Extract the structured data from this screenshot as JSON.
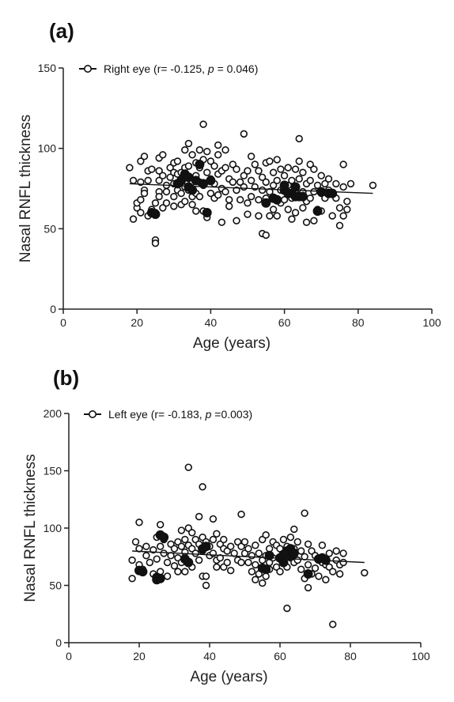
{
  "chart_data": [
    {
      "type": "scatter",
      "panel_label": "(a)",
      "legend": {
        "prefix": "Right eye (r= -0.125, ",
        "p_symbol": "p",
        "suffix": " = 0.046)",
        "placement": "top-left"
      },
      "xlabel": "Age (years)",
      "ylabel": "Nasal RNFL  thickness",
      "xlim": [
        0,
        100
      ],
      "ylim": [
        0,
        150
      ],
      "xticks": [
        0,
        20,
        40,
        60,
        80,
        100
      ],
      "yticks": [
        0,
        50,
        100,
        150
      ],
      "grid": false,
      "regression": {
        "x": [
          18,
          84
        ],
        "y": [
          78,
          72
        ]
      },
      "points": [
        [
          18,
          88
        ],
        [
          19,
          56
        ],
        [
          19,
          80
        ],
        [
          20,
          63
        ],
        [
          20,
          66
        ],
        [
          21,
          92
        ],
        [
          21,
          79
        ],
        [
          21,
          60
        ],
        [
          21,
          68
        ],
        [
          22,
          74
        ],
        [
          22,
          72
        ],
        [
          22,
          95
        ],
        [
          23,
          80
        ],
        [
          23,
          86
        ],
        [
          23,
          58
        ],
        [
          24,
          62
        ],
        [
          24,
          87
        ],
        [
          25,
          43
        ],
        [
          25,
          41
        ],
        [
          25,
          60
        ],
        [
          25,
          66
        ],
        [
          26,
          86
        ],
        [
          26,
          94
        ],
        [
          26,
          80
        ],
        [
          26,
          73
        ],
        [
          26,
          70
        ],
        [
          27,
          96
        ],
        [
          27,
          83
        ],
        [
          27,
          63
        ],
        [
          28,
          77
        ],
        [
          28,
          66
        ],
        [
          28,
          73
        ],
        [
          29,
          82
        ],
        [
          29,
          88
        ],
        [
          30,
          91
        ],
        [
          30,
          78
        ],
        [
          30,
          85
        ],
        [
          30,
          70
        ],
        [
          30,
          64
        ],
        [
          31,
          92
        ],
        [
          31,
          84
        ],
        [
          31,
          74
        ],
        [
          32,
          85
        ],
        [
          32,
          80
        ],
        [
          32,
          65
        ],
        [
          32,
          72
        ],
        [
          33,
          76
        ],
        [
          33,
          99
        ],
        [
          33,
          88
        ],
        [
          33,
          67
        ],
        [
          34,
          103
        ],
        [
          34,
          89
        ],
        [
          34,
          82
        ],
        [
          34,
          74
        ],
        [
          35,
          96
        ],
        [
          35,
          79
        ],
        [
          35,
          70
        ],
        [
          35,
          65
        ],
        [
          36,
          83
        ],
        [
          36,
          91
        ],
        [
          36,
          72
        ],
        [
          36,
          61
        ],
        [
          37,
          99
        ],
        [
          37,
          88
        ],
        [
          37,
          79
        ],
        [
          37,
          70
        ],
        [
          38,
          115
        ],
        [
          38,
          93
        ],
        [
          38,
          77
        ],
        [
          38,
          61
        ],
        [
          39,
          98
        ],
        [
          39,
          85
        ],
        [
          39,
          60
        ],
        [
          39,
          57
        ],
        [
          40,
          92
        ],
        [
          40,
          81
        ],
        [
          40,
          72
        ],
        [
          41,
          89
        ],
        [
          41,
          78
        ],
        [
          41,
          69
        ],
        [
          42,
          102
        ],
        [
          42,
          96
        ],
        [
          42,
          84
        ],
        [
          42,
          71
        ],
        [
          43,
          86
        ],
        [
          43,
          75
        ],
        [
          43,
          54
        ],
        [
          44,
          99
        ],
        [
          44,
          88
        ],
        [
          44,
          73
        ],
        [
          45,
          81
        ],
        [
          45,
          68
        ],
        [
          45,
          64
        ],
        [
          46,
          90
        ],
        [
          46,
          79
        ],
        [
          47,
          87
        ],
        [
          47,
          74
        ],
        [
          47,
          55
        ],
        [
          48,
          79
        ],
        [
          48,
          68
        ],
        [
          49,
          109
        ],
        [
          49,
          83
        ],
        [
          49,
          76
        ],
        [
          50,
          86
        ],
        [
          50,
          66
        ],
        [
          50,
          59
        ],
        [
          51,
          95
        ],
        [
          51,
          80
        ],
        [
          51,
          70
        ],
        [
          52,
          90
        ],
        [
          52,
          76
        ],
        [
          53,
          86
        ],
        [
          53,
          68
        ],
        [
          53,
          58
        ],
        [
          54,
          82
        ],
        [
          54,
          74
        ],
        [
          54,
          47
        ],
        [
          55,
          91
        ],
        [
          55,
          79
        ],
        [
          55,
          69
        ],
        [
          55,
          46
        ],
        [
          56,
          92
        ],
        [
          56,
          73
        ],
        [
          56,
          58
        ],
        [
          57,
          85
        ],
        [
          57,
          77
        ],
        [
          57,
          62
        ],
        [
          58,
          93
        ],
        [
          58,
          80
        ],
        [
          58,
          58
        ],
        [
          59,
          87
        ],
        [
          59,
          74
        ],
        [
          59,
          66
        ],
        [
          60,
          83
        ],
        [
          60,
          68
        ],
        [
          61,
          88
        ],
        [
          61,
          77
        ],
        [
          61,
          62
        ],
        [
          62,
          80
        ],
        [
          62,
          69
        ],
        [
          62,
          56
        ],
        [
          63,
          87
        ],
        [
          63,
          74
        ],
        [
          63,
          60
        ],
        [
          64,
          106
        ],
        [
          64,
          92
        ],
        [
          64,
          81
        ],
        [
          65,
          85
        ],
        [
          65,
          73
        ],
        [
          65,
          63
        ],
        [
          66,
          78
        ],
        [
          66,
          67
        ],
        [
          66,
          54
        ],
        [
          67,
          90
        ],
        [
          67,
          80
        ],
        [
          67,
          69
        ],
        [
          68,
          87
        ],
        [
          68,
          73
        ],
        [
          68,
          55
        ],
        [
          69,
          77
        ],
        [
          69,
          62
        ],
        [
          70,
          83
        ],
        [
          70,
          72
        ],
        [
          70,
          61
        ],
        [
          71,
          78
        ],
        [
          71,
          69
        ],
        [
          72,
          81
        ],
        [
          72,
          74
        ],
        [
          73,
          72
        ],
        [
          73,
          58
        ],
        [
          74,
          78
        ],
        [
          74,
          69
        ],
        [
          75,
          63
        ],
        [
          75,
          52
        ],
        [
          76,
          90
        ],
        [
          76,
          76
        ],
        [
          76,
          58
        ],
        [
          77,
          67
        ],
        [
          77,
          62
        ],
        [
          78,
          78
        ],
        [
          84,
          77
        ]
      ],
      "filled_points": [
        [
          24,
          60
        ],
        [
          25,
          59
        ],
        [
          31,
          78
        ],
        [
          32,
          80
        ],
        [
          33,
          84
        ],
        [
          34,
          76
        ],
        [
          34,
          82
        ],
        [
          35,
          74
        ],
        [
          36,
          80
        ],
        [
          37,
          90
        ],
        [
          38,
          78
        ],
        [
          39,
          60
        ],
        [
          40,
          80
        ],
        [
          55,
          66
        ],
        [
          57,
          69
        ],
        [
          58,
          68
        ],
        [
          60,
          74
        ],
        [
          60,
          77
        ],
        [
          61,
          72
        ],
        [
          62,
          72
        ],
        [
          63,
          70
        ],
        [
          63,
          76
        ],
        [
          64,
          70
        ],
        [
          65,
          70
        ],
        [
          69,
          61
        ],
        [
          70,
          73
        ],
        [
          72,
          72
        ],
        [
          73,
          72
        ]
      ]
    },
    {
      "type": "scatter",
      "panel_label": "(b)",
      "legend": {
        "prefix": "Left eye (r= -0.183,  ",
        "p_symbol": "p",
        "suffix": " =0.003)",
        "placement": "top-left"
      },
      "xlabel": "Age (years)",
      "ylabel": "Nasal RNFL  thickness",
      "xlim": [
        0,
        100
      ],
      "ylim": [
        0,
        200
      ],
      "xticks": [
        0,
        20,
        40,
        60,
        80,
        100
      ],
      "yticks": [
        0,
        50,
        100,
        150,
        200
      ],
      "grid": false,
      "regression": {
        "x": [
          18,
          84
        ],
        "y": [
          80,
          70
        ]
      },
      "points": [
        [
          18,
          56
        ],
        [
          18,
          72
        ],
        [
          19,
          88
        ],
        [
          20,
          105
        ],
        [
          20,
          82
        ],
        [
          20,
          68
        ],
        [
          21,
          64
        ],
        [
          22,
          76
        ],
        [
          22,
          84
        ],
        [
          23,
          70
        ],
        [
          24,
          60
        ],
        [
          24,
          81
        ],
        [
          25,
          92
        ],
        [
          25,
          73
        ],
        [
          26,
          103
        ],
        [
          26,
          84
        ],
        [
          26,
          62
        ],
        [
          27,
          90
        ],
        [
          27,
          78
        ],
        [
          28,
          70
        ],
        [
          28,
          58
        ],
        [
          29,
          86
        ],
        [
          29,
          76
        ],
        [
          30,
          82
        ],
        [
          30,
          67
        ],
        [
          31,
          88
        ],
        [
          31,
          74
        ],
        [
          31,
          62
        ],
        [
          32,
          98
        ],
        [
          32,
          84
        ],
        [
          32,
          70
        ],
        [
          33,
          90
        ],
        [
          33,
          79
        ],
        [
          33,
          62
        ],
        [
          34,
          153
        ],
        [
          34,
          100
        ],
        [
          34,
          85
        ],
        [
          34,
          70
        ],
        [
          35,
          96
        ],
        [
          35,
          82
        ],
        [
          35,
          66
        ],
        [
          36,
          90
        ],
        [
          36,
          78
        ],
        [
          37,
          110
        ],
        [
          37,
          86
        ],
        [
          37,
          72
        ],
        [
          38,
          136
        ],
        [
          38,
          92
        ],
        [
          38,
          80
        ],
        [
          38,
          58
        ],
        [
          39,
          88
        ],
        [
          39,
          50
        ],
        [
          39,
          58
        ],
        [
          40,
          84
        ],
        [
          40,
          76
        ],
        [
          41,
          108
        ],
        [
          41,
          90
        ],
        [
          41,
          78
        ],
        [
          42,
          95
        ],
        [
          42,
          72
        ],
        [
          42,
          66
        ],
        [
          43,
          86
        ],
        [
          43,
          74
        ],
        [
          44,
          90
        ],
        [
          44,
          82
        ],
        [
          44,
          66
        ],
        [
          45,
          80
        ],
        [
          45,
          70
        ],
        [
          46,
          84
        ],
        [
          46,
          63
        ],
        [
          47,
          78
        ],
        [
          48,
          88
        ],
        [
          48,
          72
        ],
        [
          49,
          112
        ],
        [
          49,
          84
        ],
        [
          49,
          70
        ],
        [
          50,
          88
        ],
        [
          50,
          78
        ],
        [
          51,
          82
        ],
        [
          51,
          70
        ],
        [
          52,
          76
        ],
        [
          52,
          62
        ],
        [
          53,
          85
        ],
        [
          53,
          68
        ],
        [
          53,
          55
        ],
        [
          54,
          78
        ],
        [
          54,
          60
        ],
        [
          55,
          90
        ],
        [
          55,
          72
        ],
        [
          55,
          52
        ],
        [
          56,
          94
        ],
        [
          56,
          76
        ],
        [
          56,
          58
        ],
        [
          57,
          82
        ],
        [
          57,
          70
        ],
        [
          57,
          64
        ],
        [
          58,
          88
        ],
        [
          58,
          74
        ],
        [
          59,
          85
        ],
        [
          59,
          66
        ],
        [
          60,
          82
        ],
        [
          60,
          74
        ],
        [
          60,
          62
        ],
        [
          61,
          90
        ],
        [
          61,
          72
        ],
        [
          62,
          30
        ],
        [
          62,
          84
        ],
        [
          62,
          66
        ],
        [
          63,
          92
        ],
        [
          63,
          74
        ],
        [
          64,
          99
        ],
        [
          64,
          82
        ],
        [
          64,
          70
        ],
        [
          65,
          88
        ],
        [
          65,
          72
        ],
        [
          66,
          64
        ],
        [
          66,
          80
        ],
        [
          67,
          113
        ],
        [
          67,
          75
        ],
        [
          67,
          56
        ],
        [
          68,
          86
        ],
        [
          68,
          68
        ],
        [
          68,
          48
        ],
        [
          69,
          80
        ],
        [
          69,
          60
        ],
        [
          70,
          76
        ],
        [
          70,
          65
        ],
        [
          71,
          72
        ],
        [
          71,
          58
        ],
        [
          72,
          85
        ],
        [
          72,
          70
        ],
        [
          73,
          68
        ],
        [
          73,
          55
        ],
        [
          74,
          78
        ],
        [
          74,
          66
        ],
        [
          75,
          16
        ],
        [
          75,
          62
        ],
        [
          76,
          80
        ],
        [
          76,
          72
        ],
        [
          77,
          68
        ],
        [
          77,
          60
        ],
        [
          78,
          78
        ],
        [
          78,
          70
        ],
        [
          84,
          61
        ]
      ],
      "filled_points": [
        [
          20,
          63
        ],
        [
          21,
          62
        ],
        [
          25,
          55
        ],
        [
          25,
          57
        ],
        [
          26,
          94
        ],
        [
          26,
          56
        ],
        [
          27,
          92
        ],
        [
          33,
          73
        ],
        [
          34,
          70
        ],
        [
          38,
          82
        ],
        [
          39,
          84
        ],
        [
          55,
          65
        ],
        [
          56,
          64
        ],
        [
          57,
          76
        ],
        [
          60,
          74
        ],
        [
          61,
          70
        ],
        [
          61,
          77
        ],
        [
          62,
          80
        ],
        [
          62,
          78
        ],
        [
          63,
          82
        ],
        [
          63,
          76
        ],
        [
          64,
          78
        ],
        [
          68,
          60
        ],
        [
          71,
          73
        ],
        [
          72,
          74
        ],
        [
          73,
          72
        ]
      ]
    }
  ]
}
